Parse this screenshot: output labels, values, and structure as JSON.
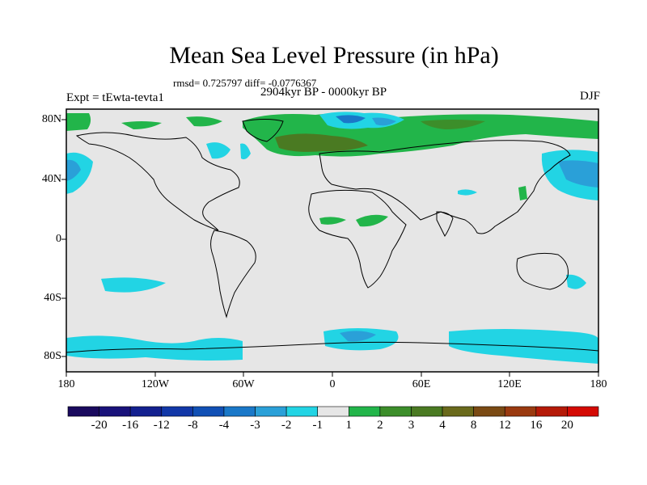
{
  "title": "Mean Sea Level Pressure (in hPa)",
  "subtitle": "rmsd= 0.725797 diff= -0.0776367",
  "experiment": "Expt = tEwta-tevta1",
  "period": "2904kyr BP - 0000kyr BP",
  "season": "DJF",
  "chart_data": {
    "type": "map",
    "variable": "Mean Sea Level Pressure difference",
    "units": "hPa",
    "lon_ticks": [
      "180",
      "120W",
      "60W",
      "0",
      "60E",
      "120E",
      "180"
    ],
    "lat_ticks": [
      "80N",
      "40N",
      "0",
      "40S",
      "80S"
    ],
    "colorbar": {
      "labels": [
        "-20",
        "-16",
        "-12",
        "-8",
        "-4",
        "-3",
        "-2",
        "-1",
        "1",
        "2",
        "3",
        "4",
        "8",
        "12",
        "16",
        "20"
      ],
      "colors": [
        "#1a0a5e",
        "#19127a",
        "#13208f",
        "#1238a8",
        "#1150b5",
        "#1a78c8",
        "#2aa0d8",
        "#22d4e4",
        "#e6e6e6",
        "#22b54a",
        "#3c8e2a",
        "#4a7a22",
        "#6a6a1c",
        "#7a4a14",
        "#9a3a10",
        "#b51a08",
        "#d40a04"
      ]
    }
  }
}
